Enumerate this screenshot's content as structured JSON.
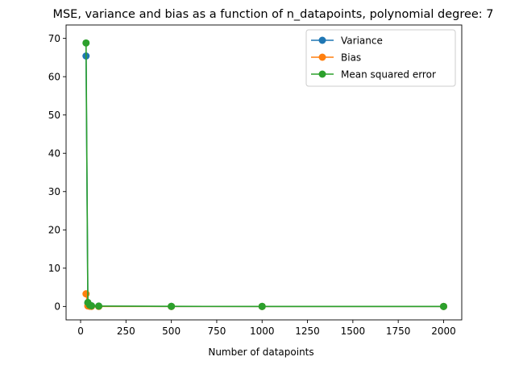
{
  "chart_data": {
    "type": "line",
    "title": "MSE, variance and bias as a function of n_datapoints, polynomial degree: 7",
    "xlabel": "Number of datapoints",
    "ylabel": "",
    "x": [
      30,
      40,
      50,
      60,
      100,
      500,
      1000,
      2000
    ],
    "xlim": [
      -80,
      2100
    ],
    "ylim": [
      -3.5,
      73.5
    ],
    "xticks": [
      0,
      250,
      500,
      750,
      1000,
      1250,
      1500,
      1750,
      2000
    ],
    "yticks": [
      0,
      10,
      20,
      30,
      40,
      50,
      60,
      70
    ],
    "grid": false,
    "legend_position": "top-right",
    "series": [
      {
        "name": "Variance",
        "color": "#1f77b4",
        "values": [
          65.4,
          0.9,
          0.3,
          0.15,
          0.08,
          0.02,
          0.01,
          0.005
        ]
      },
      {
        "name": "Bias",
        "color": "#ff7f0e",
        "values": [
          3.3,
          0.15,
          0.05,
          0.03,
          0.02,
          0.01,
          0.008,
          0.005
        ]
      },
      {
        "name": "Mean squared error",
        "color": "#2ca02c",
        "values": [
          68.8,
          1.05,
          0.35,
          0.18,
          0.1,
          0.03,
          0.02,
          0.01
        ]
      }
    ]
  }
}
